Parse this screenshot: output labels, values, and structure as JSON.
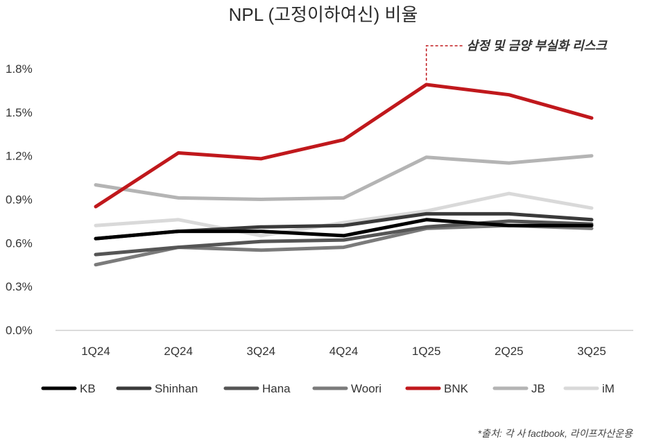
{
  "chart_data": {
    "type": "line",
    "title": "NPL (고정이하여신) 비율",
    "categories": [
      "1Q24",
      "2Q24",
      "3Q24",
      "4Q24",
      "1Q25",
      "2Q25",
      "3Q25"
    ],
    "ylim": [
      0,
      1.8
    ],
    "yticks": [
      0.0,
      0.3,
      0.6,
      0.9,
      1.2,
      1.5,
      1.8
    ],
    "ytick_labels": [
      "0.0%",
      "0.3%",
      "0.6%",
      "0.9%",
      "1.2%",
      "1.5%",
      "1.8%"
    ],
    "xlabel": "",
    "ylabel": "",
    "legend_position": "bottom",
    "series": [
      {
        "name": "KB",
        "color": "#000000",
        "values": [
          0.63,
          0.68,
          0.68,
          0.65,
          0.76,
          0.72,
          0.72
        ]
      },
      {
        "name": "Shinhan",
        "color": "#3a3a3a",
        "values": [
          0.63,
          0.68,
          0.71,
          0.72,
          0.8,
          0.8,
          0.76
        ]
      },
      {
        "name": "Hana",
        "color": "#555555",
        "values": [
          0.52,
          0.57,
          0.61,
          0.62,
          0.71,
          0.75,
          0.73
        ]
      },
      {
        "name": "Woori",
        "color": "#7b7b7b",
        "values": [
          0.45,
          0.57,
          0.55,
          0.57,
          0.7,
          0.72,
          0.7
        ]
      },
      {
        "name": "BNK",
        "color": "#c0181c",
        "values": [
          0.85,
          1.22,
          1.18,
          1.31,
          1.69,
          1.62,
          1.46
        ]
      },
      {
        "name": "JB",
        "color": "#b4b4b4",
        "values": [
          1.0,
          0.91,
          0.9,
          0.91,
          1.19,
          1.15,
          1.2
        ]
      },
      {
        "name": "iM",
        "color": "#d9d9d9",
        "values": [
          0.72,
          0.76,
          0.65,
          0.74,
          0.82,
          0.94,
          0.84
        ]
      }
    ],
    "annotation": {
      "text": "삼정 및 금양 부실화 리스크",
      "category": "1Q25",
      "series": "BNK"
    },
    "source": "*출처: 각 사 factbook, 라이프자산운용"
  }
}
